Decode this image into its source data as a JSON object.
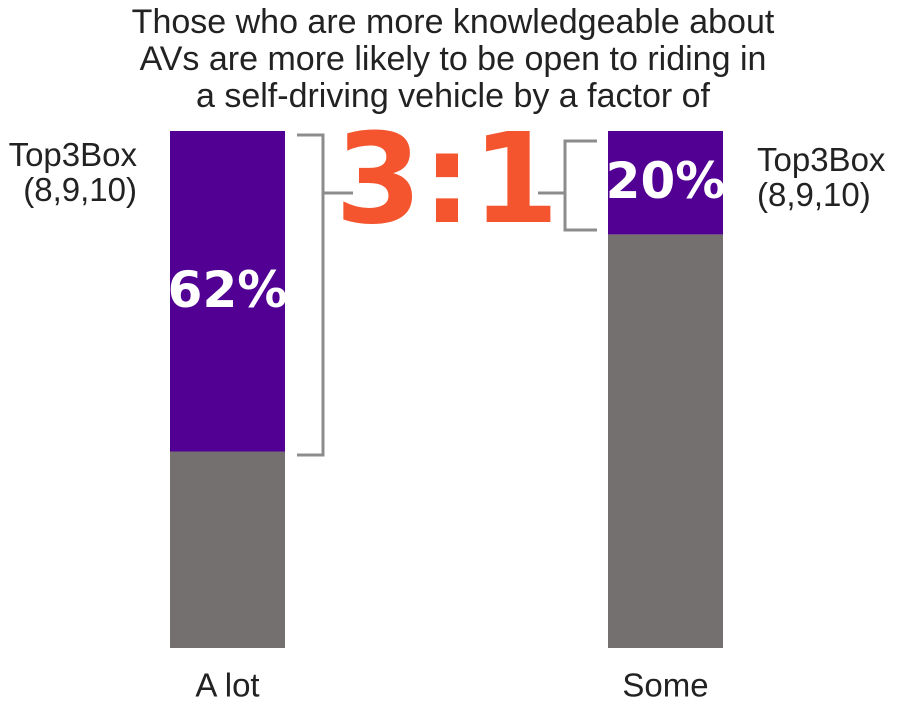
{
  "chart_data": {
    "type": "stacked-bar",
    "title": [
      "Those who are more knowledgeable about",
      "AVs are more likely to be open to riding in",
      "a self-driving vehicle by a factor of"
    ],
    "categories": [
      "A lot",
      "Some"
    ],
    "series": [
      {
        "color": "#747070",
        "values": [
          38,
          80
        ]
      },
      {
        "color": "#520094",
        "values": [
          62,
          20
        ],
        "value_labels": [
          "62%",
          "20%"
        ]
      }
    ],
    "ylim": [
      0,
      100
    ],
    "annotations": [
      "Top3Box\n(8,9,10)",
      "Top3Box\n(8,9,10)",
      "3:1"
    ]
  }
}
